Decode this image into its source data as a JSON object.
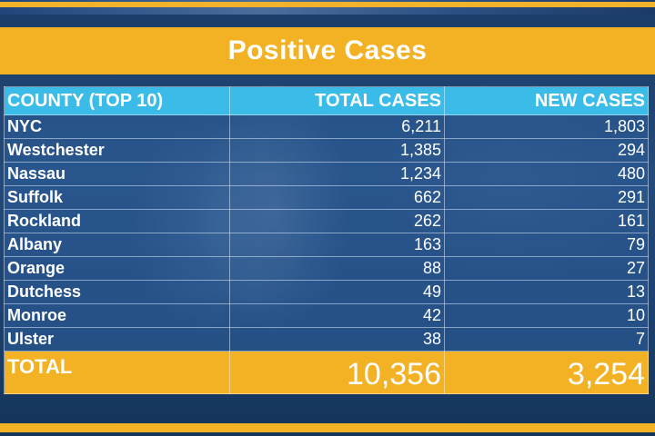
{
  "title": "Positive Cases",
  "table": {
    "headers": [
      "COUNTY (TOP 10)",
      "TOTAL CASES",
      "NEW CASES"
    ],
    "rows": [
      {
        "county": "NYC",
        "total": "6,211",
        "new": "1,803"
      },
      {
        "county": "Westchester",
        "total": "1,385",
        "new": "294"
      },
      {
        "county": "Nassau",
        "total": "1,234",
        "new": "480"
      },
      {
        "county": "Suffolk",
        "total": "662",
        "new": "291"
      },
      {
        "county": "Rockland",
        "total": "262",
        "new": "161"
      },
      {
        "county": "Albany",
        "total": "163",
        "new": "79"
      },
      {
        "county": "Orange",
        "total": "88",
        "new": "27"
      },
      {
        "county": "Dutchess",
        "total": "49",
        "new": "13"
      },
      {
        "county": "Monroe",
        "total": "42",
        "new": "10"
      },
      {
        "county": "Ulster",
        "total": "38",
        "new": "7"
      }
    ],
    "total": {
      "label": "TOTAL",
      "total": "10,356",
      "new": "3,254"
    }
  },
  "colors": {
    "accent_gold": "#f2b223",
    "header_cyan": "#3bbce8",
    "background_blue": "#1d4271"
  }
}
